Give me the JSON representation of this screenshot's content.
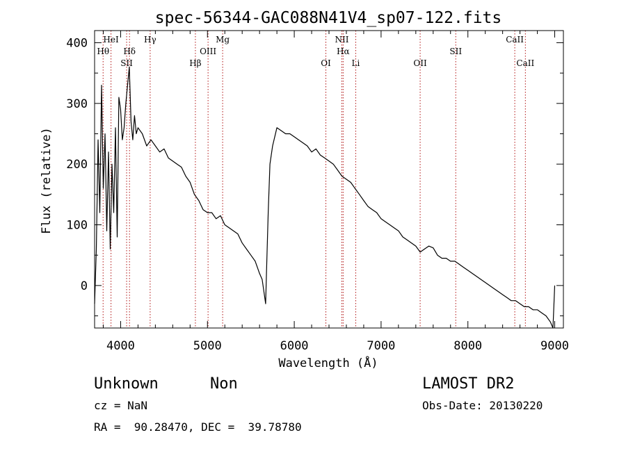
{
  "chart_data": {
    "type": "line",
    "title": "spec-56344-GAC088N41V4_sp07-122.fits",
    "xlabel": "Wavelength (Å)",
    "ylabel": "Flux (relative)",
    "xlim": [
      3700,
      9100
    ],
    "ylim": [
      -70,
      420
    ],
    "x_ticks": [
      4000,
      5000,
      6000,
      7000,
      8000,
      9000
    ],
    "y_ticks": [
      0,
      100,
      200,
      300,
      400
    ],
    "grid": false,
    "series": [
      {
        "x": [
          3700,
          3720,
          3740,
          3760,
          3780,
          3800,
          3820,
          3840,
          3860,
          3880,
          3900,
          3920,
          3940,
          3960,
          3980,
          4000,
          4020,
          4040,
          4060,
          4080,
          4100,
          4120,
          4140,
          4160,
          4180,
          4200,
          4250,
          4300,
          4350,
          4400,
          4450,
          4500,
          4550,
          4600,
          4650,
          4700,
          4750,
          4800,
          4850,
          4900,
          4950,
          5000,
          5050,
          5100,
          5150,
          5200,
          5250,
          5300,
          5350,
          5400,
          5450,
          5500,
          5550,
          5600,
          5630,
          5650,
          5670,
          5680,
          5700,
          5720,
          5750,
          5800,
          5850,
          5900,
          5950,
          6000,
          6050,
          6100,
          6150,
          6200,
          6250,
          6300,
          6350,
          6400,
          6450,
          6500,
          6550,
          6600,
          6650,
          6700,
          6750,
          6800,
          6850,
          6900,
          6950,
          7000,
          7050,
          7100,
          7150,
          7200,
          7250,
          7300,
          7350,
          7400,
          7450,
          7500,
          7550,
          7600,
          7650,
          7700,
          7750,
          7800,
          7850,
          7900,
          7950,
          8000,
          8050,
          8100,
          8150,
          8200,
          8250,
          8300,
          8350,
          8400,
          8450,
          8500,
          8550,
          8600,
          8650,
          8700,
          8750,
          8800,
          8850,
          8900,
          8950,
          8980,
          9000
        ],
        "y": [
          -30,
          60,
          240,
          120,
          330,
          160,
          250,
          90,
          220,
          60,
          200,
          120,
          260,
          80,
          310,
          290,
          240,
          260,
          300,
          330,
          360,
          270,
          240,
          280,
          250,
          260,
          250,
          230,
          240,
          230,
          220,
          225,
          210,
          205,
          200,
          195,
          180,
          170,
          150,
          140,
          125,
          120,
          120,
          110,
          115,
          100,
          95,
          90,
          85,
          70,
          60,
          50,
          40,
          20,
          10,
          -10,
          -30,
          20,
          120,
          200,
          230,
          260,
          255,
          250,
          250,
          245,
          240,
          235,
          230,
          220,
          225,
          215,
          210,
          205,
          200,
          190,
          180,
          175,
          170,
          160,
          150,
          140,
          130,
          125,
          120,
          110,
          105,
          100,
          95,
          90,
          80,
          75,
          70,
          65,
          55,
          60,
          65,
          62,
          50,
          45,
          45,
          40,
          40,
          35,
          30,
          25,
          20,
          15,
          10,
          5,
          0,
          -5,
          -10,
          -15,
          -20,
          -25,
          -25,
          -30,
          -35,
          -35,
          -40,
          -40,
          -45,
          -50,
          -60,
          -70,
          0
        ]
      }
    ],
    "lines": [
      {
        "label": "Hθ",
        "x": 3798,
        "row": 2
      },
      {
        "label": "HeI",
        "x": 3889,
        "row": 1
      },
      {
        "label": "SII",
        "x": 4069,
        "row": 3
      },
      {
        "label": "Hδ",
        "x": 4102,
        "row": 2
      },
      {
        "label": "Hγ",
        "x": 4340,
        "row": 1
      },
      {
        "label": "Hβ",
        "x": 4861,
        "row": 3
      },
      {
        "label": "OIII",
        "x": 5007,
        "row": 2
      },
      {
        "label": "Mg",
        "x": 5175,
        "row": 1
      },
      {
        "label": "OI",
        "x": 6364,
        "row": 3
      },
      {
        "label": "NII",
        "x": 6548,
        "row": 1
      },
      {
        "label": "Hα",
        "x": 6563,
        "row": 2
      },
      {
        "label": "Li",
        "x": 6708,
        "row": 3
      },
      {
        "label": "OII",
        "x": 7450,
        "row": 3
      },
      {
        "label": "SII",
        "x": 7860,
        "row": 2
      },
      {
        "label": "CaII",
        "x": 8540,
        "row": 1
      },
      {
        "label": "CaII",
        "x": 8662,
        "row": 3
      }
    ]
  },
  "info": {
    "object_type": "Unknown",
    "object_subtype": "Non",
    "survey": "LAMOST DR2",
    "cz": "cz = NaN",
    "obs_date": "Obs-Date: 20130220",
    "coords": "RA =  90.28470, DEC =  39.78780"
  }
}
